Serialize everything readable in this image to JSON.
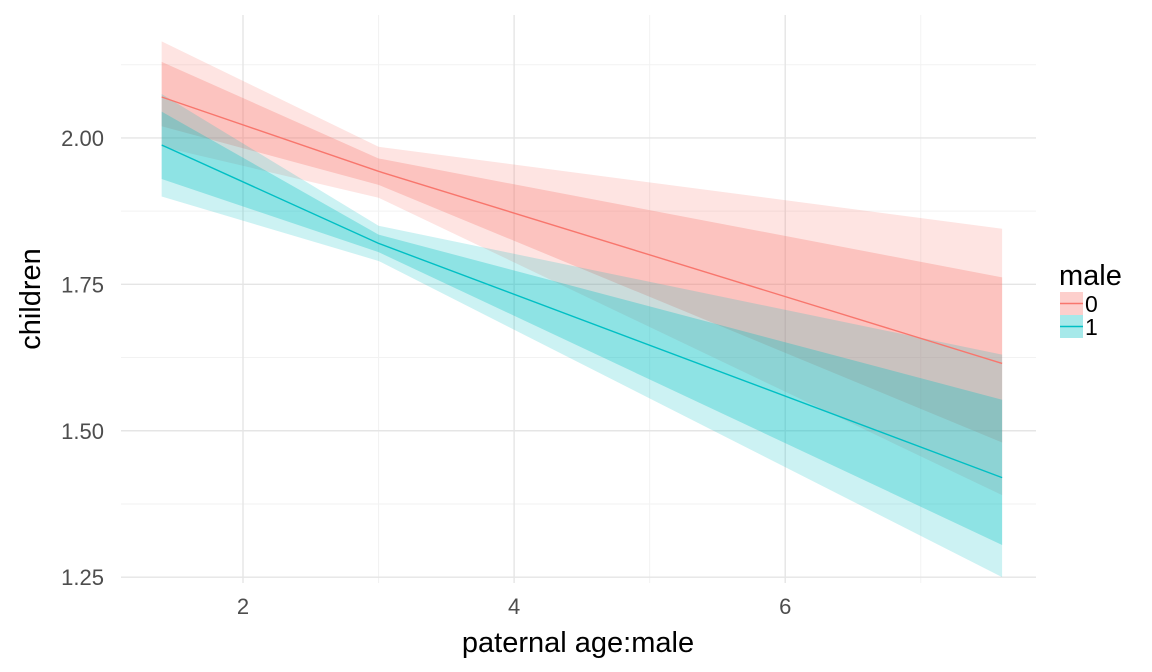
{
  "chart_data": {
    "type": "line",
    "xlabel": "paternal age:male",
    "ylabel": "children",
    "xlim": [
      1.1,
      7.85
    ],
    "ylim": [
      1.24,
      2.21
    ],
    "x_ticks": [
      2,
      4,
      6
    ],
    "x_tick_labels": [
      "2",
      "4",
      "6"
    ],
    "y_ticks": [
      1.25,
      1.5,
      1.75,
      2.0
    ],
    "y_tick_labels": [
      "1.25",
      "1.50",
      "1.75",
      "2.00"
    ],
    "grid": true,
    "legend": {
      "title": "male",
      "position": "right"
    },
    "series": [
      {
        "name": "0",
        "color": "#F8766D",
        "x": [
          1.4,
          3.0,
          7.6
        ],
        "y": [
          2.07,
          1.943,
          1.615
        ],
        "ci_inner_upper": [
          2.13,
          1.965,
          1.762
        ],
        "ci_inner_lower": [
          2.02,
          1.92,
          1.48
        ],
        "ci_outer_upper": [
          2.165,
          1.985,
          1.845
        ],
        "ci_outer_lower": [
          1.985,
          1.898,
          1.39
        ]
      },
      {
        "name": "1",
        "color": "#00BFC4",
        "x": [
          1.4,
          3.0,
          7.6
        ],
        "y": [
          1.988,
          1.82,
          1.42
        ],
        "ci_inner_upper": [
          2.045,
          1.835,
          1.553
        ],
        "ci_inner_lower": [
          1.93,
          1.805,
          1.305
        ],
        "ci_outer_upper": [
          2.075,
          1.85,
          1.63
        ],
        "ci_outer_lower": [
          1.9,
          1.79,
          1.25
        ]
      }
    ]
  }
}
